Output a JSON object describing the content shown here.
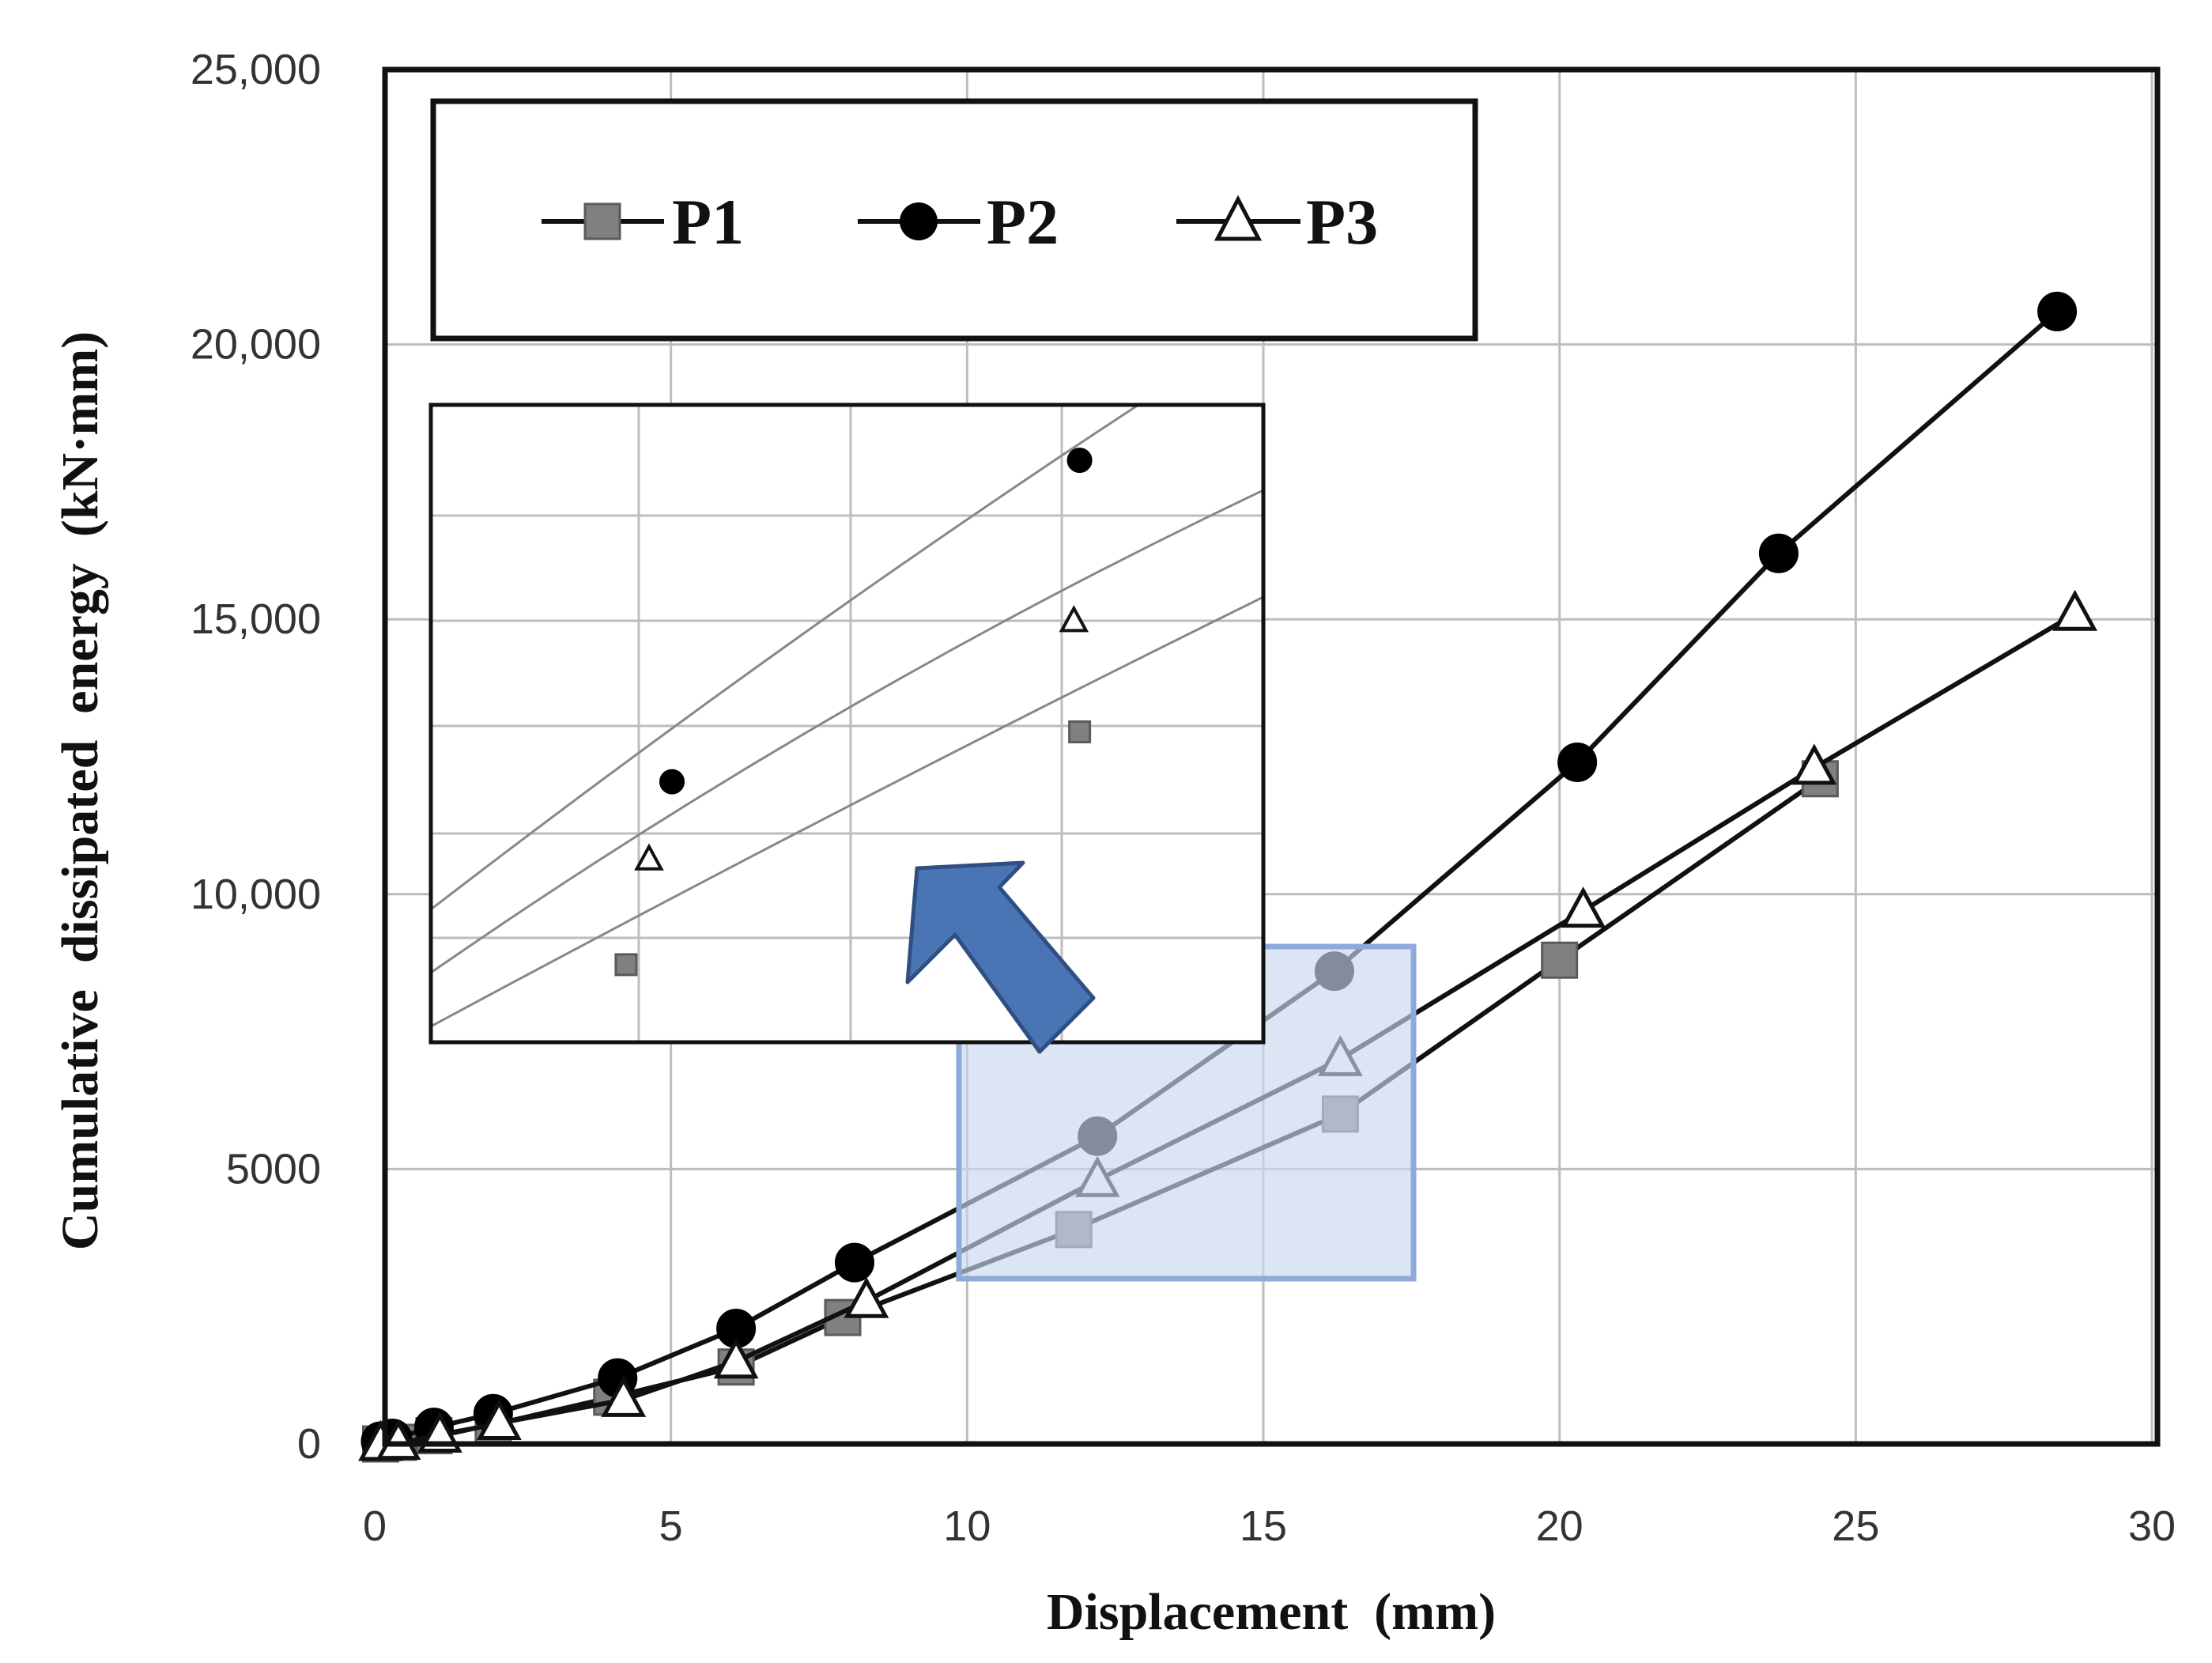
{
  "chart_data": {
    "type": "line",
    "title": "",
    "xlabel": "Displacement  (mm)",
    "ylabel": "Cumulative  dissipated  energy  (kN·mm)",
    "xlim": [
      0,
      30
    ],
    "ylim": [
      0,
      25000
    ],
    "xticks": [
      0,
      5,
      10,
      15,
      20,
      25,
      30
    ],
    "xtick_labels": [
      "0",
      "5",
      "10",
      "15",
      "20",
      "25",
      "30"
    ],
    "yticks": [
      0,
      5000,
      10000,
      15000,
      20000,
      25000
    ],
    "ytick_labels": [
      "0",
      "5000",
      "10,000",
      "15,000",
      "20,000",
      "25,000"
    ],
    "grid": true,
    "legend_position": "top-left",
    "series": [
      {
        "name": "P1",
        "marker": "square",
        "color": "#808080",
        "x": [
          0.1,
          0.4,
          1.0,
          2.0,
          4.0,
          6.1,
          7.9,
          11.8,
          16.3,
          20.0,
          24.4
        ],
        "y": [
          0,
          30,
          150,
          350,
          850,
          1400,
          2300,
          3900,
          6000,
          8800,
          12100
        ]
      },
      {
        "name": "P2",
        "marker": "circle",
        "color": "#000000",
        "x": [
          0.1,
          0.3,
          1.0,
          2.0,
          4.1,
          6.1,
          8.1,
          12.2,
          16.2,
          20.3,
          23.7,
          28.4
        ],
        "y": [
          50,
          100,
          300,
          550,
          1200,
          2100,
          3300,
          5600,
          8600,
          12400,
          16200,
          20600
        ]
      },
      {
        "name": "P3",
        "marker": "triangle",
        "color": "#ffffff",
        "x": [
          0.1,
          0.4,
          1.1,
          2.1,
          4.2,
          6.1,
          8.3,
          12.2,
          16.3,
          20.4,
          24.3,
          28.7
        ],
        "y": [
          0,
          20,
          150,
          380,
          800,
          1500,
          2600,
          4800,
          7000,
          9700,
          12300,
          15100
        ]
      }
    ],
    "annotations": [
      "inset: enlarged view of the 10–17 mm displacement region",
      "highlighted zoom region with arrow pointing to inset"
    ]
  },
  "inset": {
    "points": [
      {
        "series": "P2",
        "marker": "circle",
        "x": 4.7,
        "y": 12200
      },
      {
        "series": "P2",
        "marker": "circle",
        "x": 11.8,
        "y": 18000
      },
      {
        "series": "P3",
        "marker": "triangle",
        "x": 4.3,
        "y": 10800
      },
      {
        "series": "P3",
        "marker": "triangle",
        "x": 11.7,
        "y": 15100
      },
      {
        "series": "P1",
        "marker": "square",
        "x": 3.9,
        "y": 8900
      },
      {
        "series": "P1",
        "marker": "square",
        "x": 11.8,
        "y": 13100
      }
    ]
  },
  "colors": {
    "axis": "#111111",
    "grid": "#bdbdbd",
    "highlight_fill": "#c9d7ee",
    "highlight_stroke": "#8eaadb",
    "arrow": "#4a75b5"
  }
}
